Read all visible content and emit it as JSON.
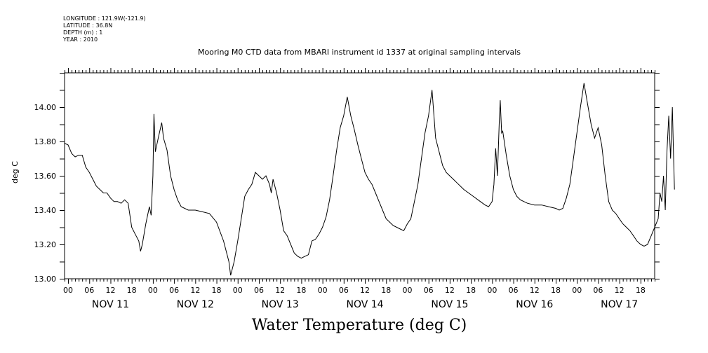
{
  "metadata": [
    "LONGITUDE : 121.9W(-121.9)",
    "LATITUDE : 36.8N",
    "DEPTH (m) : 1",
    "YEAR : 2010"
  ],
  "chart_data": {
    "type": "line",
    "title": "Mooring M0 CTD data from MBARI instrument id 1337 at original sampling intervals",
    "xlabel": "Water Temperature (deg C)",
    "ylabel": "deg C",
    "ylim": [
      13.0,
      14.2
    ],
    "yticks": [
      13.0,
      13.2,
      13.4,
      13.6,
      13.8,
      14.0
    ],
    "ytick_labels": [
      "13.00",
      "13.20",
      "13.40",
      "13.60",
      "13.80",
      "14.00"
    ],
    "x_unit": "hours since NOV 11 00:00",
    "xlim": [
      -1,
      166
    ],
    "hour_ticks": [
      "00",
      "06",
      "12",
      "18"
    ],
    "day_labels": [
      "NOV 11",
      "NOV 12",
      "NOV 13",
      "NOV 14",
      "NOV 15",
      "NOV 16",
      "NOV 17"
    ],
    "grid": false,
    "series": [
      {
        "points": [
          [
            -1,
            13.79
          ],
          [
            0,
            13.78
          ],
          [
            1,
            13.73
          ],
          [
            2,
            13.71
          ],
          [
            3,
            13.72
          ],
          [
            4,
            13.72
          ],
          [
            5,
            13.65
          ],
          [
            6,
            13.62
          ],
          [
            7,
            13.58
          ],
          [
            8,
            13.54
          ],
          [
            9,
            13.52
          ],
          [
            10,
            13.5
          ],
          [
            11,
            13.5
          ],
          [
            12,
            13.47
          ],
          [
            13,
            13.45
          ],
          [
            14,
            13.45
          ],
          [
            15,
            13.44
          ],
          [
            16,
            13.46
          ],
          [
            17,
            13.44
          ],
          [
            18,
            13.3
          ],
          [
            19,
            13.26
          ],
          [
            20,
            13.22
          ],
          [
            20.5,
            13.16
          ],
          [
            21,
            13.2
          ],
          [
            22,
            13.32
          ],
          [
            23,
            13.42
          ],
          [
            23.5,
            13.37
          ],
          [
            24,
            13.6
          ],
          [
            24.3,
            13.96
          ],
          [
            24.7,
            13.74
          ],
          [
            25.5,
            13.82
          ],
          [
            26.5,
            13.91
          ],
          [
            27,
            13.82
          ],
          [
            28,
            13.75
          ],
          [
            29,
            13.6
          ],
          [
            30,
            13.52
          ],
          [
            31,
            13.46
          ],
          [
            32,
            13.42
          ],
          [
            34,
            13.4
          ],
          [
            36,
            13.4
          ],
          [
            38,
            13.39
          ],
          [
            40,
            13.38
          ],
          [
            42,
            13.33
          ],
          [
            44,
            13.22
          ],
          [
            45.5,
            13.1
          ],
          [
            46,
            13.02
          ],
          [
            47,
            13.1
          ],
          [
            48,
            13.22
          ],
          [
            49,
            13.35
          ],
          [
            50,
            13.48
          ],
          [
            51,
            13.52
          ],
          [
            52,
            13.55
          ],
          [
            53,
            13.62
          ],
          [
            54,
            13.6
          ],
          [
            55,
            13.58
          ],
          [
            56,
            13.6
          ],
          [
            57,
            13.55
          ],
          [
            57.5,
            13.5
          ],
          [
            58,
            13.58
          ],
          [
            59,
            13.5
          ],
          [
            60,
            13.4
          ],
          [
            61,
            13.28
          ],
          [
            62,
            13.25
          ],
          [
            63,
            13.2
          ],
          [
            64,
            13.15
          ],
          [
            65,
            13.13
          ],
          [
            66,
            13.12
          ],
          [
            67,
            13.13
          ],
          [
            68,
            13.14
          ],
          [
            69,
            13.22
          ],
          [
            70,
            13.23
          ],
          [
            71,
            13.26
          ],
          [
            72,
            13.3
          ],
          [
            73,
            13.36
          ],
          [
            74,
            13.46
          ],
          [
            75,
            13.6
          ],
          [
            76,
            13.75
          ],
          [
            77,
            13.88
          ],
          [
            78,
            13.95
          ],
          [
            79,
            14.06
          ],
          [
            80,
            13.95
          ],
          [
            81,
            13.87
          ],
          [
            82,
            13.78
          ],
          [
            83,
            13.7
          ],
          [
            84,
            13.62
          ],
          [
            85,
            13.58
          ],
          [
            86,
            13.55
          ],
          [
            87,
            13.5
          ],
          [
            88,
            13.45
          ],
          [
            89,
            13.4
          ],
          [
            90,
            13.35
          ],
          [
            91,
            13.33
          ],
          [
            92,
            13.31
          ],
          [
            93,
            13.3
          ],
          [
            94,
            13.29
          ],
          [
            95,
            13.28
          ],
          [
            96,
            13.32
          ],
          [
            97,
            13.35
          ],
          [
            98,
            13.45
          ],
          [
            99,
            13.55
          ],
          [
            100,
            13.7
          ],
          [
            101,
            13.85
          ],
          [
            102,
            13.95
          ],
          [
            103,
            14.1
          ],
          [
            104,
            13.82
          ],
          [
            105,
            13.74
          ],
          [
            106,
            13.66
          ],
          [
            107,
            13.62
          ],
          [
            108,
            13.6
          ],
          [
            109,
            13.58
          ],
          [
            110,
            13.56
          ],
          [
            112,
            13.52
          ],
          [
            114,
            13.49
          ],
          [
            116,
            13.46
          ],
          [
            118,
            13.43
          ],
          [
            119,
            13.42
          ],
          [
            120,
            13.45
          ],
          [
            120.5,
            13.55
          ],
          [
            121,
            13.76
          ],
          [
            121.5,
            13.6
          ],
          [
            122,
            13.9
          ],
          [
            122.3,
            14.04
          ],
          [
            122.7,
            13.85
          ],
          [
            123,
            13.86
          ],
          [
            124,
            13.72
          ],
          [
            125,
            13.6
          ],
          [
            126,
            13.52
          ],
          [
            127,
            13.48
          ],
          [
            128,
            13.46
          ],
          [
            129,
            13.45
          ],
          [
            130,
            13.44
          ],
          [
            132,
            13.43
          ],
          [
            134,
            13.43
          ],
          [
            136,
            13.42
          ],
          [
            138,
            13.41
          ],
          [
            139,
            13.4
          ],
          [
            140,
            13.41
          ],
          [
            141,
            13.47
          ],
          [
            142,
            13.55
          ],
          [
            143,
            13.7
          ],
          [
            144,
            13.85
          ],
          [
            145,
            14.0
          ],
          [
            146,
            14.14
          ],
          [
            147,
            14.02
          ],
          [
            148,
            13.9
          ],
          [
            149,
            13.82
          ],
          [
            150,
            13.88
          ],
          [
            151,
            13.78
          ],
          [
            152,
            13.6
          ],
          [
            153,
            13.45
          ],
          [
            154,
            13.4
          ],
          [
            155,
            13.38
          ],
          [
            156,
            13.35
          ],
          [
            157,
            13.32
          ],
          [
            158,
            13.3
          ],
          [
            159,
            13.28
          ],
          [
            160,
            13.25
          ],
          [
            161,
            13.22
          ],
          [
            162,
            13.2
          ],
          [
            163,
            13.19
          ],
          [
            164,
            13.2
          ],
          [
            165,
            13.25
          ],
          [
            166,
            13.3
          ],
          [
            167,
            13.35
          ],
          [
            167.5,
            13.5
          ],
          [
            168,
            13.45
          ],
          [
            168.5,
            13.6
          ],
          [
            169,
            13.4
          ],
          [
            169.5,
            13.75
          ],
          [
            170,
            13.95
          ],
          [
            170.5,
            13.7
          ],
          [
            171,
            14.0
          ],
          [
            171.3,
            13.75
          ],
          [
            171.6,
            13.52
          ]
        ]
      }
    ]
  }
}
